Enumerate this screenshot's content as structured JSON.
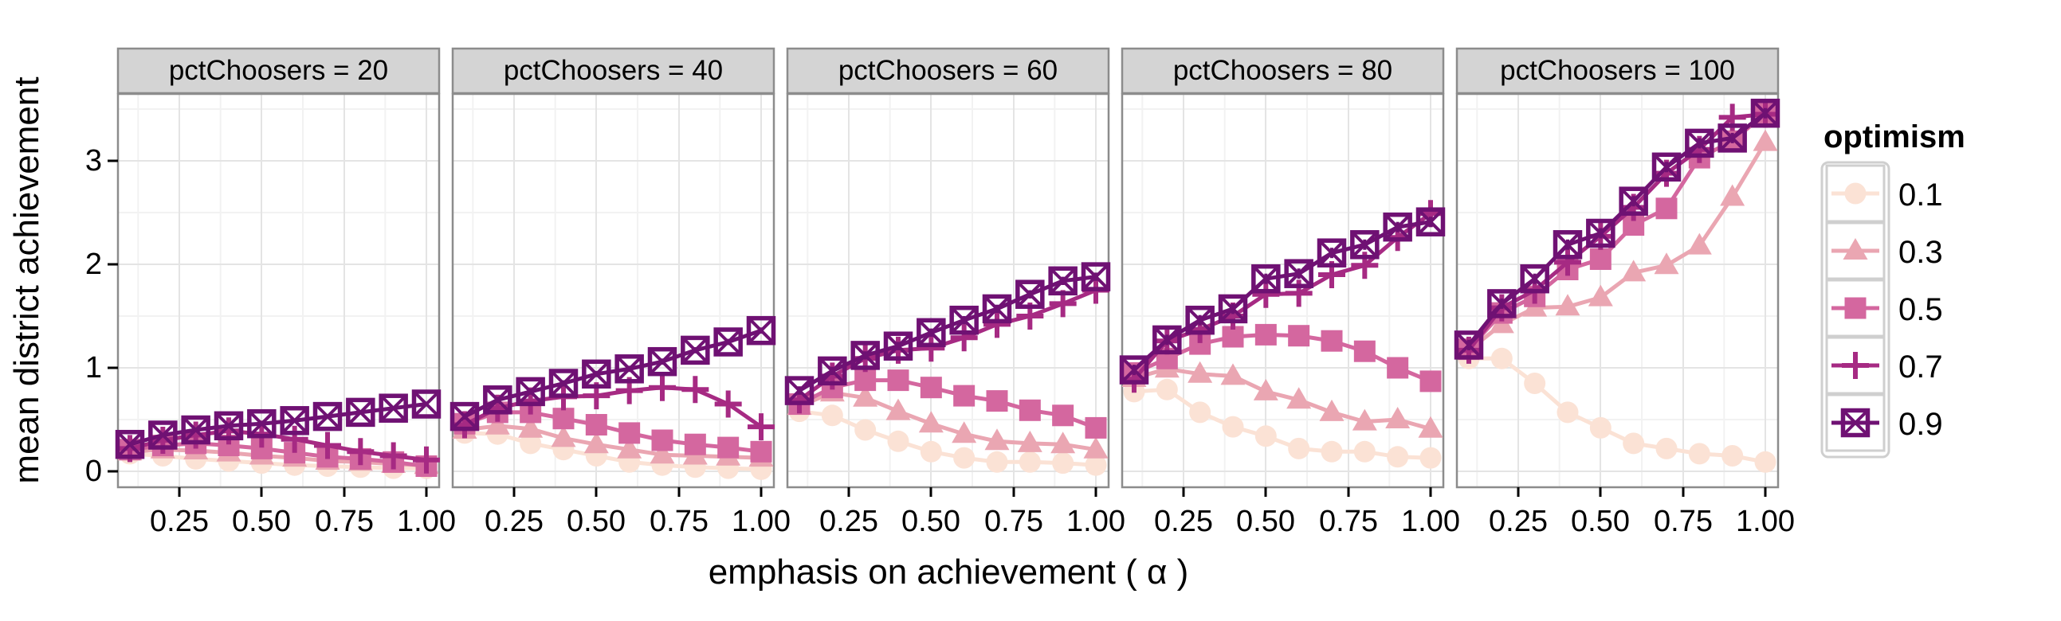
{
  "figure": {
    "y_axis_title": "mean district achievement",
    "x_axis_title": "emphasis on achievement ( α )",
    "y_ticks": [
      "0",
      "1",
      "2",
      "3"
    ],
    "x_ticks": [
      "0.25",
      "0.50",
      "0.75",
      "1.00"
    ]
  },
  "legend": {
    "title": "optimism",
    "entries": [
      {
        "label": "0.1",
        "color": "#fbe2d5",
        "marker": "circle"
      },
      {
        "label": "0.3",
        "color": "#eaa6b2",
        "marker": "triangle"
      },
      {
        "label": "0.5",
        "color": "#d4679f",
        "marker": "square"
      },
      {
        "label": "0.7",
        "color": "#a62a83",
        "marker": "plus"
      },
      {
        "label": "0.9",
        "color": "#6f1173",
        "marker": "square-x"
      }
    ]
  },
  "chart_data": {
    "type": "line",
    "facet_variable": "pctChoosers",
    "series_variable": "optimism",
    "xlabel": "emphasis on achievement ( α )",
    "ylabel": "mean district achievement",
    "x": [
      0.1,
      0.2,
      0.3,
      0.4,
      0.5,
      0.6,
      0.7,
      0.8,
      0.9,
      1.0
    ],
    "x_tick_values": [
      0.25,
      0.5,
      0.75,
      1.0
    ],
    "y_tick_values": [
      0,
      1,
      2,
      3
    ],
    "xlim": [
      0.06,
      1.04
    ],
    "ylim": [
      -0.33,
      3.66
    ],
    "grid": true,
    "legend_position": "right",
    "panels": [
      {
        "label": "pctChoosers = 20",
        "facet_value": 20,
        "series": [
          {
            "optimism": 0.1,
            "err": 0.0,
            "values": [
              0.17,
              0.15,
              0.12,
              0.1,
              0.08,
              0.06,
              0.05,
              0.04,
              0.03,
              0.03
            ]
          },
          {
            "optimism": 0.3,
            "err": 0.0,
            "values": [
              0.19,
              0.21,
              0.2,
              0.18,
              0.15,
              0.13,
              0.1,
              0.09,
              0.07,
              0.06
            ]
          },
          {
            "optimism": 0.5,
            "err": 0.02,
            "values": [
              0.21,
              0.25,
              0.27,
              0.25,
              0.22,
              0.18,
              0.14,
              0.12,
              0.09,
              0.05
            ]
          },
          {
            "optimism": 0.7,
            "err": 0.1,
            "values": [
              0.22,
              0.3,
              0.35,
              0.39,
              0.36,
              0.31,
              0.25,
              0.19,
              0.15,
              0.11
            ]
          },
          {
            "optimism": 0.9,
            "err": 0.02,
            "values": [
              0.26,
              0.35,
              0.4,
              0.44,
              0.46,
              0.49,
              0.53,
              0.57,
              0.61,
              0.65
            ]
          }
        ]
      },
      {
        "label": "pctChoosers = 40",
        "facet_value": 40,
        "series": [
          {
            "optimism": 0.1,
            "err": 0.0,
            "values": [
              0.37,
              0.36,
              0.27,
              0.21,
              0.15,
              0.09,
              0.06,
              0.04,
              0.03,
              0.02
            ]
          },
          {
            "optimism": 0.3,
            "err": 0.02,
            "values": [
              0.4,
              0.44,
              0.41,
              0.32,
              0.26,
              0.21,
              0.16,
              0.15,
              0.14,
              0.13
            ]
          },
          {
            "optimism": 0.5,
            "err": 0.03,
            "values": [
              0.46,
              0.57,
              0.57,
              0.51,
              0.45,
              0.37,
              0.3,
              0.26,
              0.23,
              0.19
            ]
          },
          {
            "optimism": 0.7,
            "err": 0.12,
            "values": [
              0.45,
              0.61,
              0.68,
              0.72,
              0.73,
              0.78,
              0.81,
              0.79,
              0.65,
              0.43
            ]
          },
          {
            "optimism": 0.9,
            "err": 0.03,
            "values": [
              0.53,
              0.69,
              0.77,
              0.85,
              0.94,
              0.99,
              1.06,
              1.17,
              1.25,
              1.36
            ]
          }
        ]
      },
      {
        "label": "pctChoosers = 60",
        "facet_value": 60,
        "series": [
          {
            "optimism": 0.1,
            "err": 0.0,
            "values": [
              0.58,
              0.54,
              0.4,
              0.29,
              0.19,
              0.13,
              0.09,
              0.09,
              0.08,
              0.06
            ]
          },
          {
            "optimism": 0.3,
            "err": 0.02,
            "values": [
              0.63,
              0.76,
              0.71,
              0.58,
              0.46,
              0.36,
              0.29,
              0.27,
              0.26,
              0.21
            ]
          },
          {
            "optimism": 0.5,
            "err": 0.04,
            "values": [
              0.65,
              0.81,
              0.88,
              0.88,
              0.81,
              0.73,
              0.68,
              0.59,
              0.54,
              0.42
            ]
          },
          {
            "optimism": 0.7,
            "err": 0.09,
            "values": [
              0.69,
              0.92,
              1.09,
              1.17,
              1.19,
              1.29,
              1.42,
              1.5,
              1.62,
              1.75
            ]
          },
          {
            "optimism": 0.9,
            "err": 0.04,
            "values": [
              0.78,
              0.97,
              1.12,
              1.21,
              1.34,
              1.46,
              1.57,
              1.71,
              1.84,
              1.88
            ]
          }
        ]
      },
      {
        "label": "pctChoosers = 80",
        "facet_value": 80,
        "series": [
          {
            "optimism": 0.1,
            "err": 0.02,
            "values": [
              0.77,
              0.79,
              0.57,
              0.43,
              0.34,
              0.22,
              0.19,
              0.19,
              0.14,
              0.13
            ]
          },
          {
            "optimism": 0.3,
            "err": 0.03,
            "values": [
              0.9,
              0.99,
              0.94,
              0.92,
              0.77,
              0.69,
              0.57,
              0.48,
              0.5,
              0.41
            ]
          },
          {
            "optimism": 0.5,
            "err": 0.04,
            "values": [
              0.95,
              1.09,
              1.23,
              1.3,
              1.32,
              1.31,
              1.26,
              1.16,
              1.0,
              0.87
            ]
          },
          {
            "optimism": 0.7,
            "err": 0.1,
            "values": [
              0.89,
              1.26,
              1.37,
              1.5,
              1.71,
              1.72,
              1.9,
              1.99,
              2.26,
              2.49
            ]
          },
          {
            "optimism": 0.9,
            "err": 0.05,
            "values": [
              0.98,
              1.27,
              1.46,
              1.57,
              1.86,
              1.91,
              2.11,
              2.19,
              2.36,
              2.41
            ]
          }
        ]
      },
      {
        "label": "pctChoosers = 100",
        "facet_value": 100,
        "series": [
          {
            "optimism": 0.1,
            "err": 0.02,
            "values": [
              1.09,
              1.09,
              0.85,
              0.57,
              0.42,
              0.27,
              0.22,
              0.17,
              0.15,
              0.09
            ]
          },
          {
            "optimism": 0.3,
            "err": 0.04,
            "values": [
              1.17,
              1.42,
              1.58,
              1.59,
              1.68,
              1.92,
              1.99,
              2.18,
              2.65,
              3.18
            ]
          },
          {
            "optimism": 0.5,
            "err": 0.05,
            "values": [
              1.18,
              1.53,
              1.69,
              1.95,
              2.05,
              2.38,
              2.54,
              3.03,
              3.19,
              3.46
            ]
          },
          {
            "optimism": 0.7,
            "err": 0.09,
            "values": [
              1.17,
              1.58,
              1.75,
              2.02,
              2.27,
              2.55,
              2.88,
              3.11,
              3.42,
              3.45
            ]
          },
          {
            "optimism": 0.9,
            "err": 0.05,
            "values": [
              1.22,
              1.62,
              1.86,
              2.19,
              2.3,
              2.61,
              2.94,
              3.17,
              3.22,
              3.46
            ]
          }
        ]
      }
    ]
  }
}
